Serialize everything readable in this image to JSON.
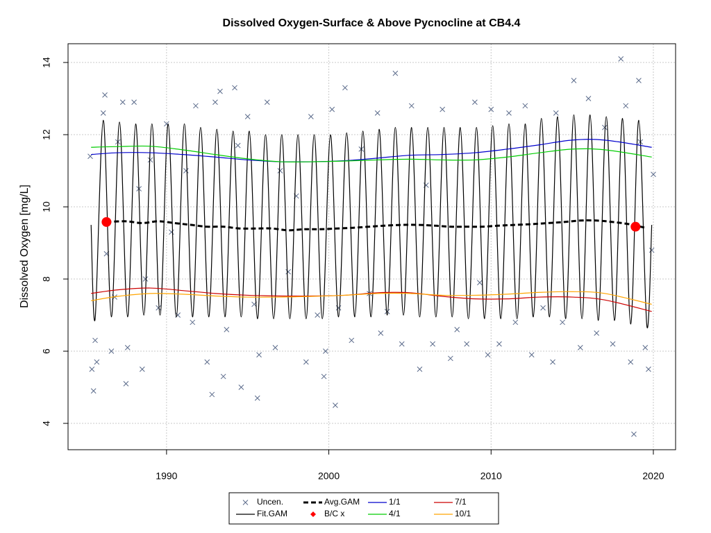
{
  "chart_data": {
    "type": "line",
    "title": "Dissolved Oxygen-Surface & Above Pycnocline at CB4.4",
    "ylabel": "Dissolved Oxygen [mg/L]",
    "xlim": [
      1983.93,
      2021.37
    ],
    "ylim": [
      3.27,
      14.52
    ],
    "xticks": [
      1990,
      2000,
      2010,
      2020
    ],
    "yticks": [
      4,
      6,
      8,
      10,
      12,
      14
    ],
    "grid": true,
    "legend": "bottom",
    "series": [
      {
        "name": "Uncen.",
        "color": "#5a6a8a",
        "marker": "x",
        "x": [
          1985.3,
          1985.4,
          1985.5,
          1985.6,
          1985.7,
          1986.1,
          1986.2,
          1986.3,
          1986.6,
          1986.8,
          1987.0,
          1987.3,
          1987.5,
          1987.6,
          1988.0,
          1988.3,
          1988.5,
          1988.7,
          1989.0,
          1989.5,
          1990.0,
          1990.3,
          1990.7,
          1991.2,
          1991.6,
          1991.8,
          1992.5,
          1992.8,
          1993.0,
          1993.3,
          1993.5,
          1993.7,
          1994.2,
          1994.4,
          1994.6,
          1995.0,
          1995.4,
          1995.6,
          1995.7,
          1996.2,
          1996.7,
          1997.0,
          1997.5,
          1998.0,
          1998.6,
          1998.9,
          1999.3,
          1999.7,
          1999.8,
          2000.2,
          2000.4,
          2000.6,
          2001.0,
          2001.4,
          2002.0,
          2002.5,
          2003.0,
          2003.2,
          2003.6,
          2004.1,
          2004.5,
          2005.1,
          2005.6,
          2006.0,
          2006.4,
          2007.0,
          2007.5,
          2007.9,
          2008.5,
          2009.0,
          2009.3,
          2009.8,
          2010.0,
          2010.5,
          2011.1,
          2011.5,
          2012.1,
          2012.5,
          2013.2,
          2013.8,
          2014.0,
          2014.4,
          2015.1,
          2015.5,
          2016.0,
          2016.5,
          2017.0,
          2017.5,
          2018.0,
          2018.3,
          2018.6,
          2018.8,
          2019.1,
          2019.2,
          2019.5,
          2019.7,
          2019.9,
          2020.0
        ],
        "values": [
          11.4,
          5.5,
          4.9,
          6.3,
          5.7,
          12.6,
          13.1,
          8.7,
          6.0,
          7.5,
          11.8,
          12.9,
          5.1,
          6.1,
          12.9,
          10.5,
          5.5,
          8.0,
          11.3,
          7.2,
          12.3,
          9.3,
          7.0,
          11.0,
          6.8,
          12.8,
          5.7,
          4.8,
          12.9,
          13.2,
          5.3,
          6.6,
          13.3,
          11.7,
          5.0,
          12.5,
          7.3,
          4.7,
          5.9,
          12.9,
          6.1,
          11.0,
          8.2,
          10.3,
          5.7,
          12.5,
          7.0,
          5.3,
          6.0,
          12.7,
          4.5,
          7.2,
          13.3,
          6.3,
          11.6,
          7.6,
          12.6,
          6.5,
          7.1,
          13.7,
          6.2,
          12.8,
          5.5,
          10.6,
          6.2,
          12.7,
          5.8,
          6.6,
          6.2,
          12.9,
          7.9,
          5.9,
          12.7,
          6.2,
          12.6,
          6.8,
          12.8,
          5.9,
          7.2,
          5.7,
          12.6,
          6.8,
          13.5,
          6.1,
          13.0,
          6.5,
          12.2,
          6.2,
          14.1,
          12.8,
          5.7,
          3.7,
          13.5,
          11.8,
          6.1,
          5.5,
          8.8,
          10.9
        ]
      },
      {
        "name": "Fit.GAM",
        "color": "#000000",
        "x": [
          1985.35,
          1985.6,
          1986.1,
          1986.6,
          1987.1,
          1987.6,
          1988.1,
          1988.6,
          1989.1,
          1989.6,
          1990.1,
          1990.6,
          1991.1,
          1991.6,
          1992.1,
          1992.6,
          1993.1,
          1993.6,
          1994.1,
          1994.6,
          1995.1,
          1995.6,
          1996.1,
          1996.6,
          1997.1,
          1997.6,
          1998.1,
          1998.6,
          1999.1,
          1999.6,
          2000.1,
          2000.6,
          2001.1,
          2001.6,
          2002.1,
          2002.6,
          2003.1,
          2003.6,
          2004.1,
          2004.6,
          2005.1,
          2005.6,
          2006.1,
          2006.6,
          2007.1,
          2007.6,
          2008.1,
          2008.6,
          2009.1,
          2009.6,
          2010.1,
          2010.6,
          2011.1,
          2011.6,
          2012.1,
          2012.6,
          2013.1,
          2013.6,
          2014.1,
          2014.6,
          2015.1,
          2015.6,
          2016.1,
          2016.6,
          2017.1,
          2017.6,
          2018.1,
          2018.6,
          2019.1,
          2019.6,
          2019.9
        ],
        "values": [
          9.5,
          6.9,
          12.4,
          6.95,
          12.35,
          6.95,
          12.3,
          7.0,
          12.3,
          7.0,
          12.3,
          6.95,
          12.3,
          6.95,
          12.2,
          6.95,
          12.15,
          6.95,
          12.1,
          6.95,
          12.1,
          6.9,
          12.0,
          6.9,
          12.0,
          6.9,
          12.0,
          6.9,
          12.0,
          6.9,
          12.0,
          6.95,
          12.05,
          6.95,
          12.1,
          6.95,
          12.15,
          7.0,
          12.2,
          7.0,
          12.2,
          6.95,
          12.2,
          6.95,
          12.2,
          6.95,
          12.2,
          6.9,
          12.2,
          6.9,
          12.25,
          6.9,
          12.3,
          6.9,
          12.3,
          6.95,
          12.45,
          6.95,
          12.5,
          6.9,
          12.55,
          6.9,
          12.55,
          6.85,
          12.5,
          6.85,
          12.45,
          6.75,
          12.4,
          6.7,
          9.5
        ]
      },
      {
        "name": "Avg.GAM",
        "color": "#000000",
        "dash": true,
        "x": [
          1986.3,
          1987.5,
          1988.5,
          1989.5,
          1990.5,
          1991.5,
          1992.5,
          1993.5,
          1994.5,
          1995.5,
          1996.5,
          1997.5,
          1998.5,
          1999.5,
          2000.5,
          2001.5,
          2002.5,
          2003.5,
          2004.5,
          2005.5,
          2006.5,
          2007.5,
          2008.5,
          2009.5,
          2010.5,
          2011.5,
          2012.5,
          2013.5,
          2014.5,
          2015.5,
          2016.5,
          2017.5,
          2018.5,
          2019.5
        ],
        "values": [
          9.58,
          9.6,
          9.55,
          9.6,
          9.55,
          9.5,
          9.45,
          9.45,
          9.4,
          9.4,
          9.4,
          9.35,
          9.38,
          9.38,
          9.4,
          9.42,
          9.45,
          9.48,
          9.5,
          9.5,
          9.48,
          9.45,
          9.45,
          9.45,
          9.48,
          9.5,
          9.52,
          9.55,
          9.58,
          9.62,
          9.62,
          9.58,
          9.52,
          9.42
        ]
      },
      {
        "name": "B/C x",
        "color": "#ff0000",
        "marker": "dot",
        "x": [
          1986.3,
          2018.9
        ],
        "values": [
          9.58,
          9.45
        ]
      },
      {
        "name": "1/1",
        "color": "#0000cc",
        "x": [
          1985.35,
          1987,
          1989,
          1991,
          1993,
          1995,
          1997,
          1999,
          2001,
          2003,
          2005,
          2007,
          2009,
          2011,
          2013,
          2015,
          2017,
          2019.9
        ],
        "values": [
          11.45,
          11.5,
          11.5,
          11.45,
          11.38,
          11.3,
          11.25,
          11.25,
          11.28,
          11.35,
          11.43,
          11.45,
          11.5,
          11.6,
          11.72,
          11.85,
          11.85,
          11.65
        ]
      },
      {
        "name": "4/1",
        "color": "#00cc00",
        "x": [
          1985.35,
          1987,
          1989,
          1991,
          1993,
          1995,
          1997,
          1999,
          2001,
          2003,
          2005,
          2007,
          2009,
          2011,
          2013,
          2015,
          2017,
          2019.9
        ],
        "values": [
          11.65,
          11.67,
          11.68,
          11.58,
          11.45,
          11.33,
          11.25,
          11.25,
          11.27,
          11.3,
          11.32,
          11.3,
          11.3,
          11.38,
          11.5,
          11.6,
          11.58,
          11.38
        ]
      },
      {
        "name": "7/1",
        "color": "#cc0000",
        "x": [
          1985.35,
          1987,
          1989,
          1991,
          1993,
          1995,
          1997,
          1999,
          2001,
          2003,
          2005,
          2007,
          2009,
          2011,
          2013,
          2015,
          2017,
          2019.9
        ],
        "values": [
          7.6,
          7.7,
          7.75,
          7.68,
          7.6,
          7.55,
          7.53,
          7.53,
          7.55,
          7.62,
          7.62,
          7.52,
          7.45,
          7.45,
          7.5,
          7.5,
          7.42,
          7.1
        ]
      },
      {
        "name": "10/1",
        "color": "#ffa500",
        "x": [
          1985.35,
          1987,
          1989,
          1991,
          1993,
          1995,
          1997,
          1999,
          2001,
          2003,
          2005,
          2007,
          2009,
          2011,
          2013,
          2015,
          2017,
          2019.9
        ],
        "values": [
          7.4,
          7.52,
          7.6,
          7.58,
          7.53,
          7.5,
          7.5,
          7.52,
          7.55,
          7.6,
          7.6,
          7.55,
          7.55,
          7.58,
          7.63,
          7.65,
          7.6,
          7.3
        ]
      }
    ]
  }
}
